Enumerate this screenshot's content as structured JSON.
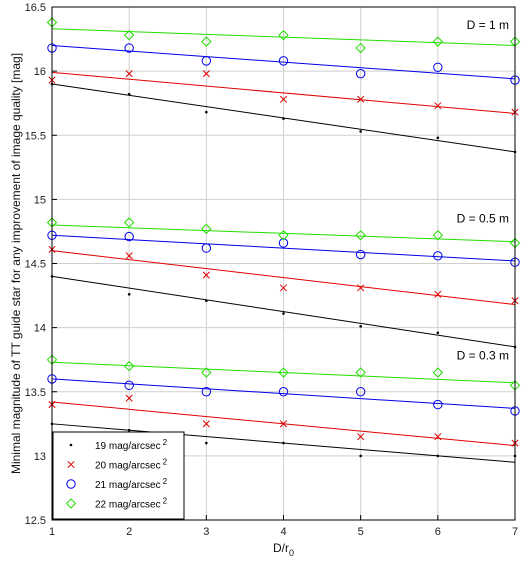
{
  "chart_data": {
    "type": "scatter",
    "xlabel": "D/r",
    "xlabel_sub": "0",
    "ylabel": "Minimal magnitude of TT guide star for any improvement of image quality [mag]",
    "xlim": [
      1,
      7
    ],
    "ylim": [
      12.5,
      16.5
    ],
    "xticks": [
      1,
      2,
      3,
      4,
      5,
      6,
      7
    ],
    "yticks": [
      12.5,
      13,
      13.5,
      14,
      14.5,
      15,
      15.5,
      16,
      16.5
    ],
    "grid": true,
    "legend_position": "lower-left",
    "legend": [
      {
        "label": "19 mag/arcsec",
        "sup": "2",
        "color": "#000000",
        "marker": "dot"
      },
      {
        "label": "20 mag/arcsec",
        "sup": "2",
        "color": "#e00000",
        "marker": "x"
      },
      {
        "label": "21 mag/arcsec",
        "sup": "2",
        "color": "#0000ee",
        "marker": "circle"
      },
      {
        "label": "22 mag/arcsec",
        "sup": "2",
        "color": "#22dd00",
        "marker": "diamond"
      }
    ],
    "groups": [
      {
        "annotation": "D = 1 m",
        "annotation_y": 16.33,
        "series": [
          {
            "marker": "dot",
            "color": "#000000",
            "x": [
              1,
              2,
              3,
              4,
              5,
              6,
              7
            ],
            "y": [
              15.9,
              15.82,
              15.68,
              15.63,
              15.53,
              15.48,
              15.37
            ],
            "fit": [
              15.9,
              15.37
            ]
          },
          {
            "marker": "x",
            "color": "#e00000",
            "x": [
              1,
              2,
              3,
              4,
              5,
              6,
              7
            ],
            "y": [
              15.93,
              15.98,
              15.98,
              15.78,
              15.78,
              15.73,
              15.68
            ],
            "fit": [
              15.99,
              15.67
            ]
          },
          {
            "marker": "circle",
            "color": "#0000ee",
            "x": [
              1,
              2,
              3,
              4,
              5,
              6,
              7
            ],
            "y": [
              16.18,
              16.18,
              16.08,
              16.08,
              15.98,
              16.03,
              15.93
            ],
            "fit": [
              16.2,
              15.94
            ]
          },
          {
            "marker": "diamond",
            "color": "#22dd00",
            "x": [
              1,
              2,
              3,
              4,
              5,
              6,
              7
            ],
            "y": [
              16.38,
              16.28,
              16.23,
              16.28,
              16.18,
              16.23,
              16.23
            ],
            "fit": [
              16.33,
              16.2
            ]
          }
        ]
      },
      {
        "annotation": "D = 0.5 m",
        "annotation_y": 14.82,
        "series": [
          {
            "marker": "dot",
            "color": "#000000",
            "x": [
              1,
              2,
              3,
              4,
              5,
              6,
              7
            ],
            "y": [
              14.4,
              14.26,
              14.21,
              14.11,
              14.01,
              13.96,
              13.85
            ],
            "fit": [
              14.4,
              13.85
            ]
          },
          {
            "marker": "x",
            "color": "#e00000",
            "x": [
              1,
              2,
              3,
              4,
              5,
              6,
              7
            ],
            "y": [
              14.61,
              14.56,
              14.41,
              14.31,
              14.31,
              14.26,
              14.21
            ],
            "fit": [
              14.6,
              14.18
            ]
          },
          {
            "marker": "circle",
            "color": "#0000ee",
            "x": [
              1,
              2,
              3,
              4,
              5,
              6,
              7
            ],
            "y": [
              14.72,
              14.71,
              14.62,
              14.66,
              14.57,
              14.56,
              14.51
            ],
            "fit": [
              14.72,
              14.52
            ]
          },
          {
            "marker": "diamond",
            "color": "#22dd00",
            "x": [
              1,
              2,
              3,
              4,
              5,
              6,
              7
            ],
            "y": [
              14.82,
              14.82,
              14.77,
              14.72,
              14.72,
              14.72,
              14.66
            ],
            "fit": [
              14.8,
              14.67
            ]
          }
        ]
      },
      {
        "annotation": "D = 0.3 m",
        "annotation_y": 13.75,
        "series": [
          {
            "marker": "dot",
            "color": "#000000",
            "x": [
              1,
              2,
              3,
              4,
              5,
              6,
              7
            ],
            "y": [
              13.25,
              13.2,
              13.1,
              13.1,
              13.0,
              13.0,
              13.0
            ],
            "fit": [
              13.25,
              12.95
            ]
          },
          {
            "marker": "x",
            "color": "#e00000",
            "x": [
              1,
              2,
              3,
              4,
              5,
              6,
              7
            ],
            "y": [
              13.4,
              13.45,
              13.25,
              13.25,
              13.15,
              13.15,
              13.1
            ],
            "fit": [
              13.42,
              13.08
            ]
          },
          {
            "marker": "circle",
            "color": "#0000ee",
            "x": [
              1,
              2,
              3,
              4,
              5,
              6,
              7
            ],
            "y": [
              13.6,
              13.55,
              13.5,
              13.5,
              13.5,
              13.4,
              13.35
            ],
            "fit": [
              13.6,
              13.37
            ]
          },
          {
            "marker": "diamond",
            "color": "#22dd00",
            "x": [
              1,
              2,
              3,
              4,
              5,
              6,
              7
            ],
            "y": [
              13.75,
              13.7,
              13.65,
              13.65,
              13.65,
              13.65,
              13.55
            ],
            "fit": [
              13.73,
              13.57
            ]
          }
        ]
      }
    ]
  }
}
